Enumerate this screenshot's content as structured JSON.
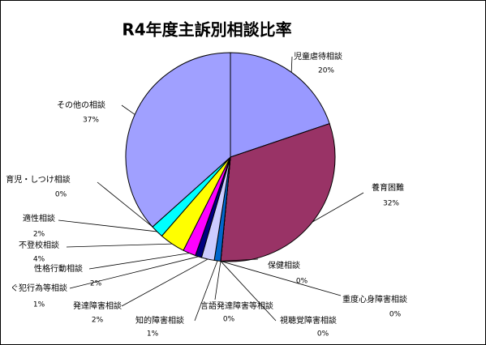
{
  "chart_data": {
    "type": "pie",
    "title": "R4年度主訴別相談比率",
    "categories": [
      "児童虐待相談",
      "養育困難",
      "保健相談",
      "重度心身障害相談",
      "視聴覚障害相談",
      "言語発達障害等相談",
      "知的障害相談",
      "発達障害相談",
      "ぐ犯行為等相談",
      "性格行動相談",
      "不登校相談",
      "適性相談",
      "育児・しつけ相談",
      "その他の相談"
    ],
    "values": [
      20,
      32,
      0,
      0,
      0,
      0,
      1,
      2,
      1,
      2,
      4,
      2,
      0,
      37
    ],
    "value_labels": [
      "20%",
      "32%",
      "0%",
      "0%",
      "0%",
      "0%",
      "1%",
      "2%",
      "1%",
      "2%",
      "4%",
      "2%",
      "0%",
      "37%"
    ],
    "colors": [
      "#9999ff",
      "#993366",
      "#ffffcc",
      "#ccffff",
      "#660066",
      "#ff8080",
      "#0066cc",
      "#ccccff",
      "#000080",
      "#ff00ff",
      "#ffff00",
      "#00ffff",
      "#800080",
      "#a0a0ff"
    ]
  }
}
